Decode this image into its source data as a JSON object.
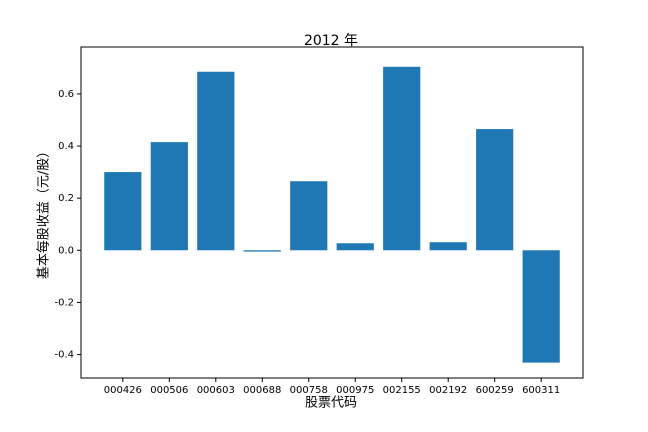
{
  "chart_data": {
    "type": "bar",
    "title": "2012 年",
    "xlabel": "股票代码",
    "ylabel": "基本每股收益（元/股）",
    "categories": [
      "000426",
      "000506",
      "000603",
      "000688",
      "000758",
      "000975",
      "002155",
      "002192",
      "600259",
      "600311"
    ],
    "values": [
      0.3,
      0.415,
      0.685,
      -0.005,
      0.265,
      0.027,
      0.704,
      0.031,
      0.465,
      -0.431
    ],
    "color": "#1f77b4",
    "ylim": [
      -0.49,
      0.78
    ],
    "yticks": [
      -0.4,
      -0.2,
      {
        "value": 0,
        "label": "0.0"
      },
      0.2,
      0.4,
      0.6
    ]
  }
}
